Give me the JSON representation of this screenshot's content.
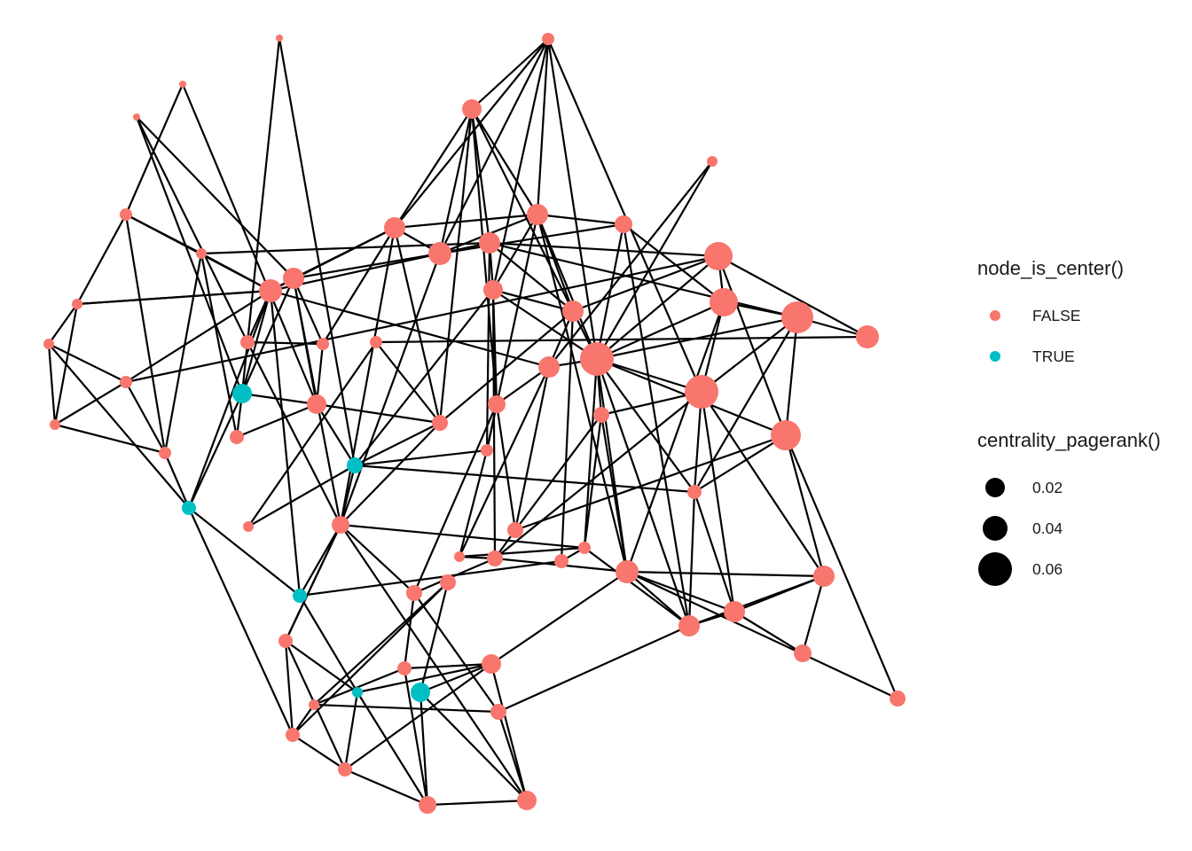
{
  "legend": {
    "colour_title": "node_is_center()",
    "colour_entries": [
      {
        "label": "FALSE",
        "color": "#F8766D"
      },
      {
        "label": "TRUE",
        "color": "#00BFC4"
      }
    ],
    "size_title": "centrality_pagerank()",
    "size_entries": [
      {
        "label": "0.02",
        "value": 0.02
      },
      {
        "label": "0.04",
        "value": 0.04
      },
      {
        "label": "0.06",
        "value": 0.06
      }
    ]
  },
  "colors": {
    "edge": "#000000",
    "false": "#F8766D",
    "true": "#00BFC4",
    "legend_key": "#000000"
  }
}
